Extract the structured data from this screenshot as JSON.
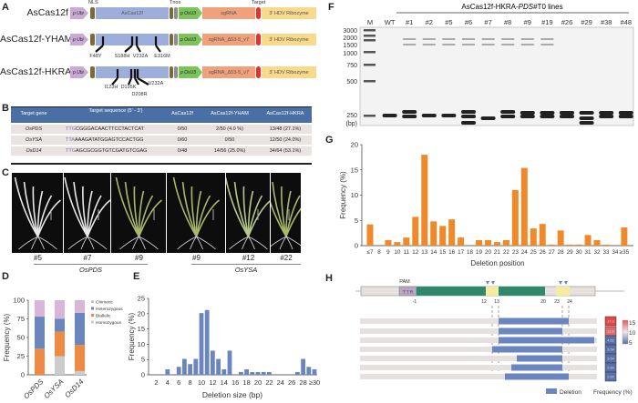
{
  "panels": {
    "A": "A",
    "B": "B",
    "C": "C",
    "D": "D",
    "E": "E",
    "F": "F",
    "G": "G",
    "H": "H"
  },
  "panelA": {
    "top_labels": {
      "nls": "NLS",
      "tnos": "Tnos",
      "target": "Target"
    },
    "constructs": [
      {
        "name": "AsCas12f",
        "promoter": "p Ubi",
        "cas": "AsCas12f",
        "u3": "p OsU3",
        "sgrna": "sgRNA",
        "hdv": "3' HDV Ribozyme",
        "mutations": []
      },
      {
        "name": "AsCas12f-YHAM",
        "promoter": "p Ubi",
        "cas": "",
        "u3": "p OsU3",
        "sgrna": "sgRNA_Δ53-5_v7",
        "hdv": "3' HDV Ribozyme",
        "mutations": [
          "F48Y",
          "S188H",
          "V232A",
          "E316M"
        ]
      },
      {
        "name": "AsCas12f-HKRA",
        "promoter": "p Ubi",
        "cas": "",
        "u3": "p OsU3",
        "sgrna": "sgRNA_Δ53-5_v7",
        "hdv": "3' HDV Ribozyme",
        "mutations": [
          "I123H",
          "D195K",
          "D208R",
          "V232A"
        ]
      }
    ],
    "colors": {
      "promoter": "#c9a9d6",
      "cas": "#9eaedb",
      "nls": "#7a6a3a",
      "tnos": "#8d8d8d",
      "u3": "#7cc35a",
      "sgrna": "#f0a07a",
      "target": "#e53030",
      "hdv": "#f9d98a"
    }
  },
  "panelB": {
    "headers": [
      "Target gene",
      "Target sequence (5' - 3')",
      "AsCas12f",
      "AsCas12f-YHAM",
      "AsCas12f-HKRA"
    ],
    "rows": [
      {
        "gene": "OsPDS",
        "pam": "TTG",
        "seq": "CGGGACAACTTCCTACTCAT",
        "a": "0/50",
        "b": "2/50  (4.0 %)",
        "c": "13/48 (27.1%)"
      },
      {
        "gene": "OsYSA",
        "pam": "TTA",
        "seq": "AAAGATATGGAGTCCACTGG",
        "a": "0/60",
        "b": "0/50",
        "c": "12/50 (24.0%)"
      },
      {
        "gene": "OsD14",
        "pam": "TTG",
        "seq": "AGCGCGGTGTCGATGTCGAG",
        "a": "0/48",
        "b": "14/56  (25.0%)",
        "c": "34/64  (53.1%)"
      }
    ],
    "header_color": "#4a6fa5"
  },
  "panelC": {
    "lines": [
      "#5",
      "#7",
      "#9",
      "#9",
      "#12",
      "#22"
    ],
    "groups": [
      "OsPDS",
      "OsYSA"
    ]
  },
  "panelD": {
    "chart_data": {
      "type": "bar",
      "stacked": true,
      "categories": [
        "OsPDS",
        "OsYSA",
        "OsD14"
      ],
      "ylabel": "Frequency (%)",
      "ylim": [
        0,
        100
      ],
      "yticks": [
        "0",
        "25",
        "50",
        "75",
        "100"
      ],
      "series": [
        {
          "name": "Homozygous",
          "color": "#cccccc",
          "values": [
            0,
            25,
            5
          ]
        },
        {
          "name": "Biallelic",
          "color": "#ef8a45",
          "values": [
            35,
            33,
            35
          ]
        },
        {
          "name": "Heterozygous",
          "color": "#6b86bf",
          "values": [
            43,
            17,
            43
          ]
        },
        {
          "name": "Chimeric",
          "color": "#d8b6d8",
          "values": [
            22,
            25,
            17
          ]
        }
      ],
      "legend_order": [
        "Chimeric",
        "Heterozygous",
        "Biallelic",
        "Homozygous"
      ],
      "legend": "top-right"
    }
  },
  "panelE": {
    "chart_data": {
      "type": "bar",
      "color": "#6b86bf",
      "categories": [
        "2",
        "3",
        "4",
        "5",
        "6",
        "7",
        "8",
        "9",
        "10",
        "11",
        "12",
        "13",
        "14",
        "15",
        "16",
        "17",
        "18",
        "19",
        "20",
        "21",
        "22",
        "23",
        "24",
        "25",
        "26",
        "27",
        "28",
        "29",
        "≥30"
      ],
      "values": [
        0,
        0,
        1.8,
        0,
        2.6,
        5.2,
        3.5,
        5.2,
        20.2,
        21.2,
        7.9,
        5.2,
        1.8,
        7.9,
        0,
        0.9,
        1.8,
        0.9,
        0.9,
        0.9,
        0.9,
        0,
        0,
        0,
        0,
        0.9,
        5.2,
        2.6,
        1.8
      ],
      "xticks": [
        "2",
        "4",
        "6",
        "8",
        "10",
        "12",
        "14",
        "16",
        "18",
        "20",
        "22",
        "24",
        "26",
        "28",
        "≥30"
      ],
      "xlabel": "Deletion size (bp)",
      "ylabel": "Frequency (%)",
      "ylim": [
        0,
        25
      ],
      "yticks": [
        "0",
        "5",
        "10",
        "15",
        "20",
        "25"
      ]
    }
  },
  "panelF": {
    "title_prefix": "AsCas12f-HKRA-",
    "title_italic": "PDS",
    "title_suffix": "#T0 lines",
    "lanes": [
      "M",
      "WT",
      "#1",
      "#2",
      "#5",
      "#6",
      "#7",
      "#8",
      "#9",
      "#19",
      "#26",
      "#29",
      "#38",
      "#48"
    ],
    "ladder": [
      "3000",
      "2000",
      "1500",
      "1000",
      "750",
      "500",
      "250"
    ],
    "unit": "(bp)"
  },
  "panelG": {
    "chart_data": {
      "type": "bar",
      "color": "#f0892a",
      "categories": [
        "≤7",
        "8",
        "9",
        "10",
        "11",
        "12",
        "13",
        "14",
        "15",
        "16",
        "17",
        "18",
        "19",
        "20",
        "21",
        "22",
        "23",
        "24",
        "25",
        "26",
        "27",
        "28",
        "29",
        "30",
        "31",
        "32",
        "33",
        "34",
        "≥35"
      ],
      "values": [
        4.2,
        0,
        1.1,
        0.7,
        1.6,
        5.7,
        18,
        4.8,
        3.9,
        5.2,
        1.6,
        0,
        1.1,
        1.1,
        0.7,
        1.1,
        11,
        15.4,
        3.4,
        4.3,
        0.2,
        3,
        0.2,
        0.2,
        2.1,
        1.1,
        0.2,
        0,
        3.6
      ],
      "xlabel": "Deletion position",
      "ylabel": "Frequency (%)",
      "ylim": [
        0,
        20
      ],
      "yticks": [
        "0",
        "5",
        "10",
        "15",
        "20"
      ]
    }
  },
  "panelH": {
    "pam_label": "PAM",
    "pam_seq": "T T R",
    "positions": [
      "-1",
      "12",
      "13",
      "20",
      "23",
      "24"
    ],
    "deletions": [
      {
        "from": 13,
        "to": 24,
        "freq": "17.9"
      },
      {
        "from": 13,
        "to": 23,
        "freq": "12.8"
      },
      {
        "from": 13,
        "to": 35,
        "freq": "4.62"
      },
      {
        "from": 12,
        "to": 23,
        "freq": "3.54"
      },
      {
        "from": 16,
        "to": 23,
        "freq": "3.54"
      },
      {
        "from": 15,
        "to": 23,
        "freq": "2.65"
      },
      {
        "from": 14,
        "to": 24,
        "freq": "2.65"
      }
    ],
    "scale_ticks": [
      "15",
      "10",
      "5"
    ],
    "legend_deletion": "Deletion",
    "legend_frequency": "Frequency (%)",
    "colors": {
      "deletion": "#6b86bf",
      "background": "#e6e1df",
      "seed": "#2e8a6a",
      "yellow": "#f7eba0",
      "high": "#e45a5a",
      "low": "#5a6fa8"
    }
  }
}
